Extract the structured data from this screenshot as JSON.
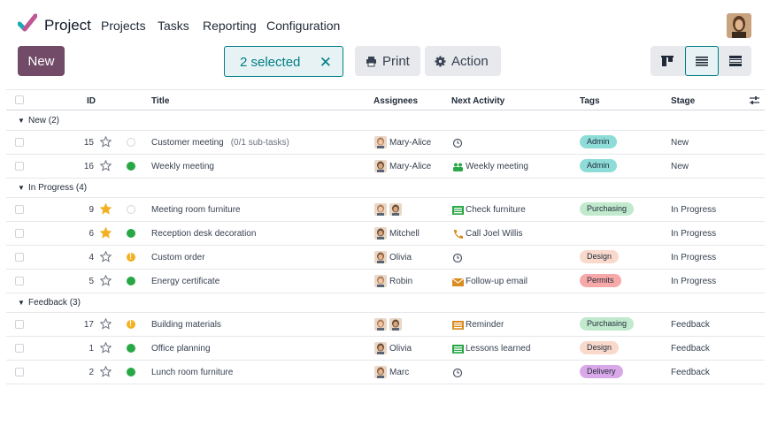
{
  "nav": {
    "app_name": "Project",
    "menu": [
      "Projects",
      "Tasks",
      "Reporting",
      "Configuration"
    ]
  },
  "toolbar": {
    "new_label": "New",
    "selected_label": "2 selected",
    "print_label": "Print",
    "action_label": "Action"
  },
  "columns": {
    "id": "ID",
    "title": "Title",
    "assignees": "Assignees",
    "next_activity": "Next Activity",
    "tags": "Tags",
    "stage": "Stage"
  },
  "colors": {
    "brand": "#714b67",
    "accent": "#017e84",
    "tag_admin": "#8edcd8",
    "tag_purchasing": "#c0e9cd",
    "tag_design": "#f9d9cc",
    "tag_permits": "#f7a8a8",
    "tag_delivery": "#d9a8e8"
  },
  "groups": [
    {
      "label": "New (2)",
      "rows": [
        {
          "id": "15",
          "starred": false,
          "status": "grey",
          "title": "Customer meeting",
          "note": "(0/1 sub-tasks)",
          "assignee": "Mary-Alice",
          "avatar_count": 1,
          "activity_icon": "clock-icon",
          "activity": "",
          "tag": "Admin",
          "tag_color": "#8edcd8",
          "stage": "New"
        },
        {
          "id": "16",
          "starred": false,
          "status": "green",
          "title": "Weekly meeting",
          "note": "",
          "assignee": "Mary-Alice",
          "avatar_count": 1,
          "activity_icon": "people-icon",
          "activity": "Weekly meeting",
          "tag": "Admin",
          "tag_color": "#8edcd8",
          "stage": "New"
        }
      ]
    },
    {
      "label": "In Progress (4)",
      "rows": [
        {
          "id": "9",
          "starred": true,
          "status": "grey",
          "title": "Meeting room furniture",
          "note": "",
          "assignee": "",
          "avatar_count": 2,
          "activity_icon": "todo-icon",
          "activity": "Check furniture",
          "tag": "Purchasing",
          "tag_color": "#c0e9cd",
          "stage": "In Progress"
        },
        {
          "id": "6",
          "starred": true,
          "status": "green",
          "title": "Reception desk decoration",
          "note": "",
          "assignee": "Mitchell",
          "avatar_count": 1,
          "activity_icon": "phone-icon",
          "activity": "Call Joel Willis",
          "tag": "",
          "tag_color": "",
          "stage": "In Progress"
        },
        {
          "id": "4",
          "starred": false,
          "status": "amber",
          "title": "Custom order",
          "note": "",
          "assignee": "Olivia",
          "avatar_count": 1,
          "activity_icon": "clock-icon",
          "activity": "",
          "tag": "Design",
          "tag_color": "#f9d9cc",
          "stage": "In Progress"
        },
        {
          "id": "5",
          "starred": false,
          "status": "green",
          "title": "Energy certificate",
          "note": "",
          "assignee": "Robin",
          "avatar_count": 1,
          "activity_icon": "email-icon",
          "activity": "Follow-up email",
          "tag": "Permits",
          "tag_color": "#f7a8a8",
          "stage": "In Progress"
        }
      ]
    },
    {
      "label": "Feedback (3)",
      "rows": [
        {
          "id": "17",
          "starred": false,
          "status": "amber",
          "title": "Building materials",
          "note": "",
          "assignee": "",
          "avatar_count": 2,
          "activity_icon": "reminder-icon",
          "activity": "Reminder",
          "tag": "Purchasing",
          "tag_color": "#c0e9cd",
          "stage": "Feedback"
        },
        {
          "id": "1",
          "starred": false,
          "status": "green",
          "title": "Office planning",
          "note": "",
          "assignee": "Olivia",
          "avatar_count": 1,
          "activity_icon": "todo-icon",
          "activity": "Lessons learned",
          "tag": "Design",
          "tag_color": "#f9d9cc",
          "stage": "Feedback"
        },
        {
          "id": "2",
          "starred": false,
          "status": "green",
          "title": "Lunch room furniture",
          "note": "",
          "assignee": "Marc",
          "avatar_count": 1,
          "activity_icon": "clock-icon",
          "activity": "",
          "tag": "Delivery",
          "tag_color": "#d9a8e8",
          "stage": "Feedback"
        }
      ]
    }
  ]
}
